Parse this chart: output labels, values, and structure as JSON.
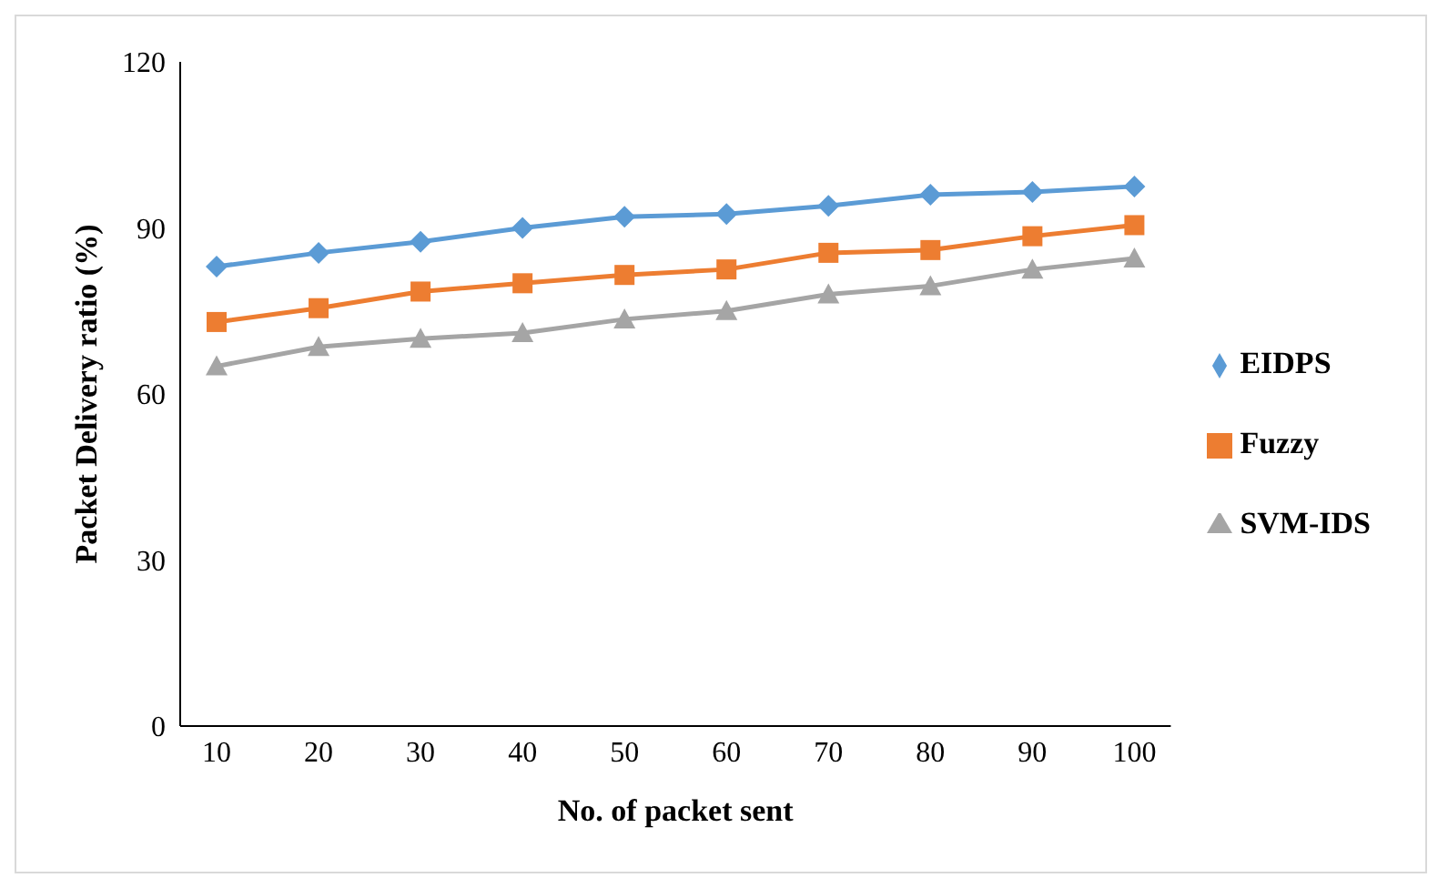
{
  "chart_data": {
    "type": "line",
    "xlabel": "No. of  packet sent",
    "ylabel": "Packet Delivery ratio (%)",
    "categories": [
      "10",
      "20",
      "30",
      "40",
      "50",
      "60",
      "70",
      "80",
      "90",
      "100"
    ],
    "series": [
      {
        "name": "EIDPS",
        "color": "#5b9bd5",
        "marker": "diamond",
        "values": [
          83,
          85.5,
          87.5,
          90,
          92,
          92.5,
          94,
          96,
          96.5,
          97.5
        ]
      },
      {
        "name": "Fuzzy",
        "color": "#ed7d31",
        "marker": "square",
        "values": [
          73,
          75.5,
          78.5,
          80,
          81.5,
          82.5,
          85.5,
          86,
          88.5,
          90.5
        ]
      },
      {
        "name": "SVM-IDS",
        "color": "#a5a5a5",
        "marker": "triangle",
        "values": [
          65,
          68.5,
          70,
          71,
          73.5,
          75,
          78,
          79.5,
          82.5,
          84.5
        ]
      }
    ],
    "ylim": [
      0,
      120
    ],
    "yticks": [
      0,
      30,
      60,
      90,
      120
    ],
    "legend": "right"
  }
}
